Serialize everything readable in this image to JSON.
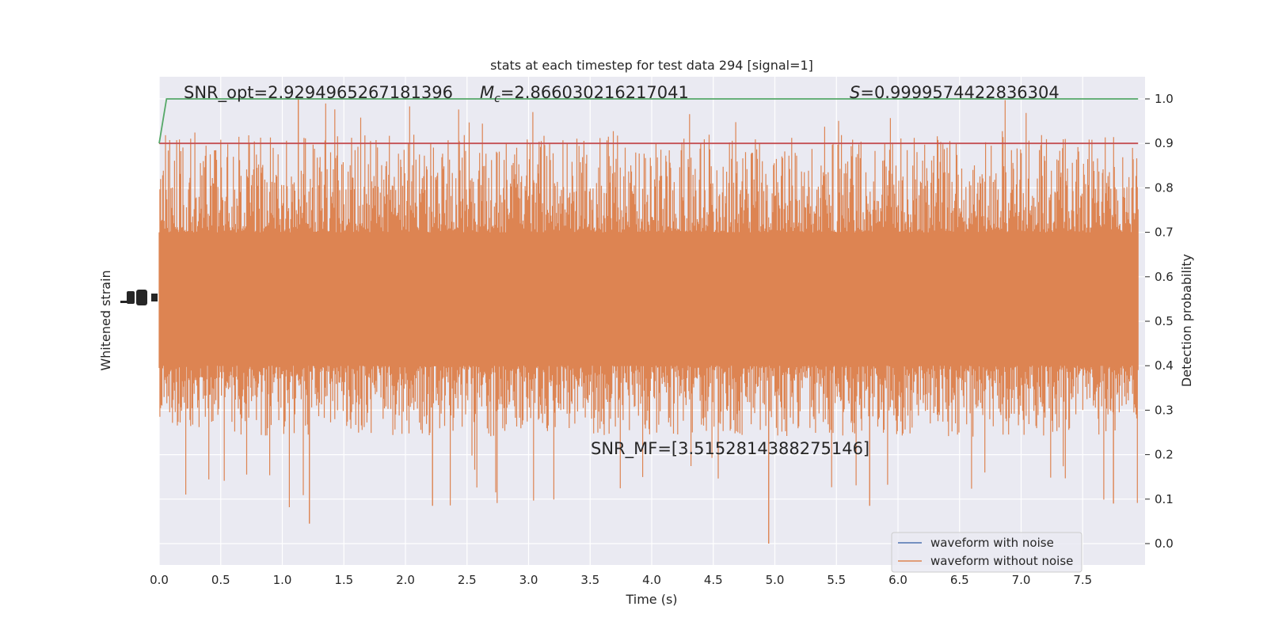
{
  "chart_data": {
    "type": "line",
    "title": "stats at each timestep for test data 294 [signal=1]",
    "xlabel": "Time (s)",
    "ylabel_left": "Whitened strain",
    "ylabel_right": "Detection probability",
    "xlim": [
      0.0,
      8.0
    ],
    "ylim_right": [
      -0.048,
      1.048
    ],
    "x_ticks": [
      "0.0",
      "0.5",
      "1.0",
      "1.5",
      "2.0",
      "2.5",
      "3.0",
      "3.5",
      "4.0",
      "4.5",
      "5.0",
      "5.5",
      "6.0",
      "6.5",
      "7.0",
      "7.5"
    ],
    "y_right_ticks": [
      "0.0",
      "0.1",
      "0.2",
      "0.3",
      "0.4",
      "0.5",
      "0.6",
      "0.7",
      "0.8",
      "0.9",
      "1.0"
    ],
    "grid": true,
    "legend_position": "lower-right",
    "annotations": {
      "snr_opt": "SNR_opt=2.9294965267181396",
      "mc_label": "M",
      "mc_sub": "c",
      "mc_value": "=2.866030216217041",
      "s_label": "S",
      "s_value": "=0.9999574422836304",
      "snr_mf": "SNR_MF=[3.5152814388275146]"
    },
    "series": [
      {
        "name": "waveform with noise",
        "color": "#4c72b0"
      },
      {
        "name": "waveform without noise",
        "color": "#dd8452"
      }
    ],
    "probability_series": {
      "color": "#55a868",
      "x": [
        0.0,
        0.06,
        7.95
      ],
      "y": [
        0.9,
        1.0,
        1.0
      ]
    },
    "threshold": {
      "value": 0.9,
      "color": "#c44e52",
      "x": [
        0.0,
        7.95
      ]
    },
    "noise_band": {
      "core_low": 0.4,
      "core_high": 0.7,
      "spike_high_max": 1.0,
      "spike_low_min": 0.0,
      "x_end": 7.95
    }
  }
}
